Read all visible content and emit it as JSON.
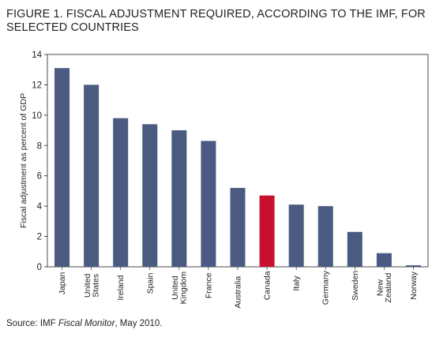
{
  "title": "FIGURE 1. FISCAL ADJUSTMENT REQUIRED, ACCORDING TO THE IMF, FOR SELECTED COUNTRIES",
  "source": {
    "prefix": "Source: IMF ",
    "italic": "Fiscal Monitor",
    "suffix": ", May 2010."
  },
  "colors": {
    "bar": "#4a5a80",
    "highlight": "#c8102e",
    "axis": "#231f20"
  },
  "chart_data": {
    "type": "bar",
    "categories": [
      "Japan",
      "United States",
      "Ireland",
      "Spain",
      "United Kingdom",
      "France",
      "Australia",
      "Canada",
      "Italy",
      "Germany",
      "Sweden",
      "New Zealand",
      "Norway"
    ],
    "category_label_lines": [
      [
        "Japan"
      ],
      [
        "United",
        "States"
      ],
      [
        "Ireland"
      ],
      [
        "Spain"
      ],
      [
        "United",
        "Kingdom"
      ],
      [
        "France"
      ],
      [
        "Australia"
      ],
      [
        "Canada"
      ],
      [
        "Italy"
      ],
      [
        "Germany"
      ],
      [
        "Sweden"
      ],
      [
        "New",
        "Zealand"
      ],
      [
        "Norway"
      ]
    ],
    "values": [
      13.1,
      12.0,
      9.8,
      9.4,
      9.0,
      8.3,
      5.2,
      4.7,
      4.1,
      4.0,
      2.3,
      0.9,
      0.1
    ],
    "highlight_category": "Canada",
    "xlabel": "",
    "ylabel": "Fiscal adjustment as percent of GDP",
    "ylim": [
      0,
      14
    ],
    "yticks": [
      0,
      2,
      4,
      6,
      8,
      10,
      12,
      14
    ],
    "grid": false,
    "legend": "none"
  }
}
